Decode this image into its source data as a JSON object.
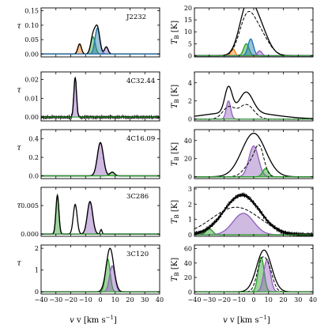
{
  "figure": {
    "x_label_left": "v [km s",
    "x_label_right": "v [km s",
    "x_label_exp": "−1",
    "x_label_tail": "]",
    "x_ticks": [
      "−40",
      "−30",
      "−20",
      "−10",
      "0",
      "10",
      "20",
      "30",
      "40"
    ],
    "left_y_label": "τ",
    "right_y_label": "T",
    "right_y_label_sub": "B",
    "right_y_label_unit": "[K]"
  },
  "chart_data": [
    {
      "type": "line",
      "panel": "tau",
      "source": "J2232",
      "xlim": [
        -40,
        40
      ],
      "ylim": [
        -0.01,
        0.16
      ],
      "yticks": [
        "0.00",
        "0.05",
        "0.10",
        "0.15"
      ],
      "ytick_values": [
        0,
        0.05,
        0.1,
        0.15
      ],
      "components": [
        {
          "color": "#ff7f0e",
          "mean": -14,
          "sigma": 1.2,
          "amp": 0.035
        },
        {
          "color": "#2ca02c",
          "mean": -5,
          "sigma": 1.5,
          "amp": 0.06
        },
        {
          "color": "#1f77b4",
          "mean": -2,
          "sigma": 1.6,
          "amp": 0.09
        },
        {
          "color": "#9467bd",
          "mean": 4,
          "sigma": 1.2,
          "amp": 0.025
        }
      ],
      "total": {
        "color": "#000000",
        "style": "solid"
      },
      "residual": {
        "color": "#1f77b4",
        "style": "solid",
        "level": 0
      }
    },
    {
      "type": "line",
      "panel": "TB",
      "source": "J2232",
      "xlim": [
        -40,
        40
      ],
      "ylim": [
        -0.5,
        20
      ],
      "yticks": [
        "0",
        "5",
        "10",
        "15",
        "20"
      ],
      "ytick_values": [
        0,
        5,
        10,
        15,
        20
      ],
      "components": [
        {
          "color": "#ff7f0e",
          "mean": -14,
          "sigma": 1.3,
          "amp": 3
        },
        {
          "color": "#2ca02c",
          "mean": -5,
          "sigma": 1.8,
          "amp": 5
        },
        {
          "color": "#1f77b4",
          "mean": -2,
          "sigma": 1.8,
          "amp": 7
        },
        {
          "color": "#9467bd",
          "mean": 4,
          "sigma": 1.5,
          "amp": 2
        }
      ],
      "total": {
        "color": "#000000",
        "style": "solid",
        "peaks": [
          [
            -5,
            17
          ],
          [
            3,
            13
          ]
        ],
        "widths": [
          5,
          6
        ]
      },
      "dashed": {
        "color": "#000000",
        "peaks": [
          [
            -5,
            13
          ],
          [
            3,
            10
          ]
        ],
        "widths": [
          5,
          6.5
        ]
      }
    },
    {
      "type": "line",
      "panel": "tau",
      "source": "4C32.44",
      "xlim": [
        -40,
        40
      ],
      "ylim": [
        -0.002,
        0.024
      ],
      "yticks": [
        "0.00",
        "0.01",
        "0.02"
      ],
      "ytick_values": [
        0,
        0.01,
        0.02
      ],
      "components": [
        {
          "color": "#9467bd",
          "mean": -17,
          "sigma": 0.9,
          "amp": 0.021
        }
      ],
      "total": {
        "color": "#000000",
        "style": "solid",
        "noise": 0.0008
      }
    },
    {
      "type": "line",
      "panel": "TB",
      "source": "4C32.44",
      "xlim": [
        -40,
        40
      ],
      "ylim": [
        -0.2,
        5.2
      ],
      "yticks": [
        "0",
        "2",
        "4"
      ],
      "ytick_values": [
        0,
        2,
        4
      ],
      "components": [
        {
          "color": "#9467bd",
          "mean": -17,
          "sigma": 1.5,
          "amp": 2.0
        }
      ],
      "total": {
        "color": "#000000",
        "style": "solid",
        "peaks": [
          [
            -17,
            2.8
          ],
          [
            -5,
            2.2
          ]
        ],
        "widths": [
          2.5,
          4.5
        ],
        "floor": 0.8
      },
      "dashed": {
        "color": "#000000",
        "peaks": [
          [
            -17,
            1.3
          ],
          [
            -5,
            1.6
          ]
        ],
        "widths": [
          4,
          5
        ]
      }
    },
    {
      "type": "line",
      "panel": "tau",
      "source": "4C16.09",
      "xlim": [
        -40,
        40
      ],
      "ylim": [
        -0.03,
        0.5
      ],
      "yticks": [
        "0.0",
        "0.2",
        "0.4"
      ],
      "ytick_values": [
        0,
        0.2,
        0.4
      ],
      "components": [
        {
          "color": "#9467bd",
          "mean": 0,
          "sigma": 2.0,
          "amp": 0.36
        },
        {
          "color": "#2ca02c",
          "mean": 8,
          "sigma": 1.5,
          "amp": 0.04
        }
      ],
      "total": {
        "color": "#000000",
        "style": "solid"
      }
    },
    {
      "type": "line",
      "panel": "TB",
      "source": "4C16.09",
      "xlim": [
        -40,
        40
      ],
      "ylim": [
        -2,
        52
      ],
      "yticks": [
        "0",
        "20",
        "40"
      ],
      "ytick_values": [
        0,
        20,
        40
      ],
      "components": [
        {
          "color": "#9467bd",
          "mean": 0,
          "sigma": 3.2,
          "amp": 34
        },
        {
          "color": "#2ca02c",
          "mean": 8,
          "sigma": 2.0,
          "amp": 9
        }
      ],
      "total": {
        "color": "#000000",
        "style": "solid",
        "peaks": [
          [
            0,
            48
          ]
        ],
        "widths": [
          8
        ]
      },
      "dashed": {
        "color": "#000000",
        "peaks": [
          [
            -1,
            16
          ],
          [
            4,
            25
          ]
        ],
        "widths": [
          5,
          3
        ]
      }
    },
    {
      "type": "line",
      "panel": "tau",
      "source": "3C286",
      "xlim": [
        -40,
        40
      ],
      "ylim": [
        -0.0004,
        0.0082
      ],
      "yticks": [
        "0.000",
        "0.005"
      ],
      "ytick_values": [
        0,
        0.005
      ],
      "components": [
        {
          "color": "#2ca02c",
          "mean": -29,
          "sigma": 1.0,
          "amp": 0.0068
        },
        {
          "color": "#9467bd",
          "mean": -7,
          "sigma": 1.8,
          "amp": 0.0057
        }
      ],
      "total": {
        "color": "#000000",
        "style": "solid",
        "extra_peaks": [
          [
            -17,
            0.0052,
            1.3
          ],
          [
            0.5,
            0.0008,
            0.6
          ]
        ]
      }
    },
    {
      "type": "line",
      "panel": "TB",
      "source": "3C286",
      "xlim": [
        -40,
        40
      ],
      "ylim": [
        -0.1,
        3.1
      ],
      "yticks": [
        "0",
        "1",
        "2",
        "3"
      ],
      "ytick_values": [
        0,
        1,
        2,
        3
      ],
      "components": [
        {
          "color": "#2ca02c",
          "mean": -30,
          "sigma": 2.2,
          "amp": 0.4
        },
        {
          "color": "#9467bd",
          "mean": -7,
          "sigma": 7,
          "amp": 1.4
        }
      ],
      "total": {
        "color": "#000000",
        "style": "solid",
        "peaks": [
          [
            -8,
            2.6
          ]
        ],
        "widths": [
          12
        ],
        "noise": 0.15
      },
      "dashed": {
        "color": "#000000",
        "peaks": [
          [
            -12,
            1.8
          ]
        ],
        "widths": [
          16
        ]
      }
    },
    {
      "type": "line",
      "panel": "tau",
      "source": "3C120",
      "xlim": [
        -40,
        40
      ],
      "ylim": [
        -0.1,
        2.15
      ],
      "yticks": [
        "0",
        "1",
        "2"
      ],
      "ytick_values": [
        0,
        1,
        2
      ],
      "components": [
        {
          "color": "#2ca02c",
          "mean": 5,
          "sigma": 1.6,
          "amp": 1.5
        },
        {
          "color": "#9467bd",
          "mean": 8,
          "sigma": 1.8,
          "amp": 1.2
        }
      ],
      "total": {
        "color": "#000000",
        "style": "solid",
        "peaks": [
          [
            6.5,
            2.0
          ]
        ],
        "widths": [
          2.5
        ]
      }
    },
    {
      "type": "line",
      "panel": "TB",
      "source": "3C120",
      "xlim": [
        -40,
        40
      ],
      "ylim": [
        -3,
        65
      ],
      "yticks": [
        "0",
        "20",
        "40",
        "60"
      ],
      "ytick_values": [
        0,
        20,
        40,
        60
      ],
      "components": [
        {
          "color": "#2ca02c",
          "mean": 5,
          "sigma": 2.0,
          "amp": 48
        },
        {
          "color": "#9467bd",
          "mean": 9,
          "sigma": 2.2,
          "amp": 45
        }
      ],
      "total": {
        "color": "#000000",
        "style": "solid",
        "peaks": [
          [
            7,
            58
          ]
        ],
        "widths": [
          5
        ]
      },
      "dashed": {
        "color": "#000000",
        "peaks": [
          [
            5,
            38
          ],
          [
            10,
            30
          ]
        ],
        "widths": [
          3,
          3
        ]
      }
    }
  ]
}
